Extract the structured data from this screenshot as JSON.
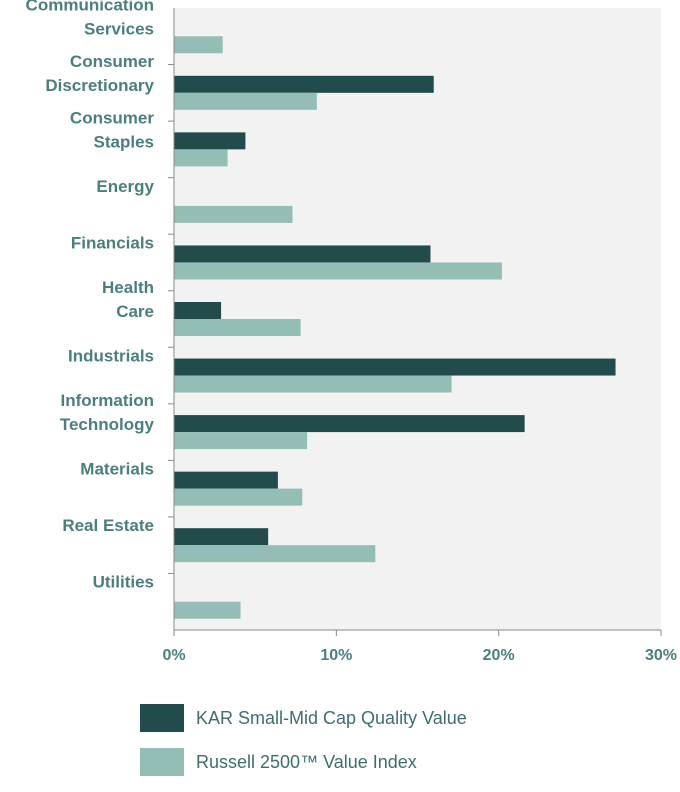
{
  "colors": {
    "series1": "#224c4b",
    "series2": "#94bdb6",
    "plot_background": "#f2f2f2",
    "label": "#4a7f7e",
    "axis": "#888888"
  },
  "chart_data": {
    "type": "bar",
    "orientation": "horizontal",
    "categories": [
      [
        "Communication",
        "Services"
      ],
      [
        "Consumer",
        "Discretionary"
      ],
      [
        "Consumer",
        "Staples"
      ],
      [
        "Energy"
      ],
      [
        "Financials"
      ],
      [
        "Health",
        "Care"
      ],
      [
        "Industrials"
      ],
      [
        "Information",
        "Technology"
      ],
      [
        "Materials"
      ],
      [
        "Real Estate"
      ],
      [
        "Utilities"
      ]
    ],
    "series": [
      {
        "name": "KAR Small-Mid Cap Quality Value",
        "values": [
          0,
          16.0,
          4.4,
          0,
          15.8,
          2.9,
          27.2,
          21.6,
          6.4,
          5.8,
          0
        ]
      },
      {
        "name": "Russell 2500™ Value Index",
        "values": [
          3.0,
          8.8,
          3.3,
          7.3,
          20.2,
          7.8,
          17.1,
          8.2,
          7.9,
          12.4,
          4.1
        ]
      }
    ],
    "xlim": [
      0,
      30
    ],
    "xticks": [
      0,
      10,
      20,
      30
    ],
    "xtick_labels": [
      "0%",
      "10%",
      "20%",
      "30%"
    ],
    "legend": "bottom",
    "grid": false
  },
  "legend": {
    "items": [
      {
        "label": "KAR Small-Mid Cap Quality Value"
      },
      {
        "label": "Russell 2500™ Value Index"
      }
    ]
  }
}
